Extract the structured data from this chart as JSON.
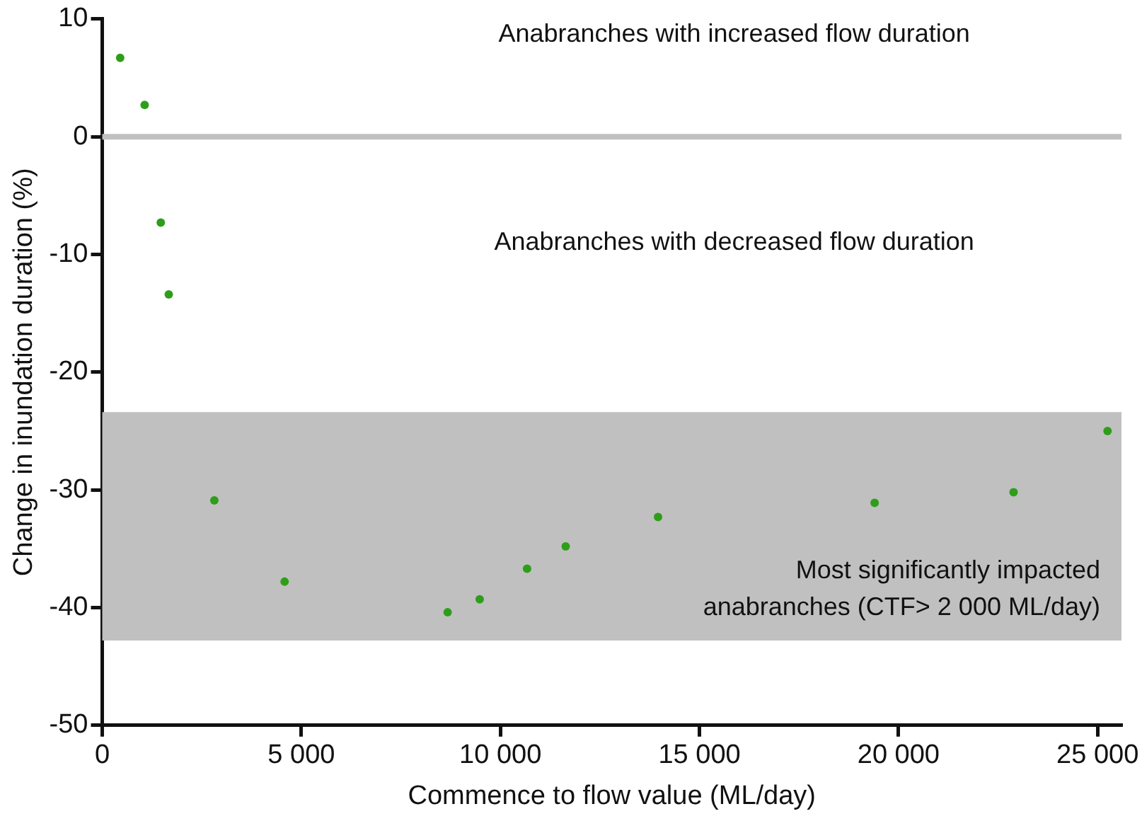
{
  "chart_data": {
    "type": "scatter",
    "xlabel": "Commence to flow value (ML/day)",
    "ylabel": "Change in inundation duration (%)",
    "x": [
      450,
      1065,
      1470,
      1670,
      2815,
      4580,
      8675,
      9480,
      10670,
      11640,
      13960,
      19400,
      22890,
      25250
    ],
    "series": [
      {
        "color": "#2e9e1a",
        "values": [
          6.7,
          2.7,
          -7.3,
          -13.4,
          -30.9,
          -37.8,
          -40.4,
          -39.3,
          -36.7,
          -34.8,
          -32.3,
          -31.1,
          -30.2,
          -25.0
        ]
      }
    ],
    "marker": "circle",
    "grid": false,
    "legend": false,
    "xlim": [
      0,
      25600
    ],
    "xticks": [
      0,
      {
        "value": 5000,
        "label": "5 000"
      },
      {
        "value": 10000,
        "label": "10 000"
      },
      {
        "value": 15000,
        "label": "15 000"
      },
      {
        "value": 20000,
        "label": "20 000"
      },
      {
        "value": 25000,
        "label": "25 000"
      }
    ],
    "ylim": [
      -50,
      10
    ],
    "yticks": [
      -50,
      -40,
      -30,
      -20,
      -10,
      0,
      10
    ],
    "ref_lines": [
      {
        "axis": "y",
        "value": 0,
        "color": "#c0c0c0"
      }
    ],
    "bands": [
      {
        "axis": "y",
        "from": -23.4,
        "to": -42.8,
        "color": "#c0c0c0",
        "label": "Most significantly impacted anabranches (CTF> 2 000 ML/day)"
      }
    ],
    "annotations": [
      "Anabranches with increased flow duration",
      "Anabranches with decreased flow duration"
    ]
  }
}
